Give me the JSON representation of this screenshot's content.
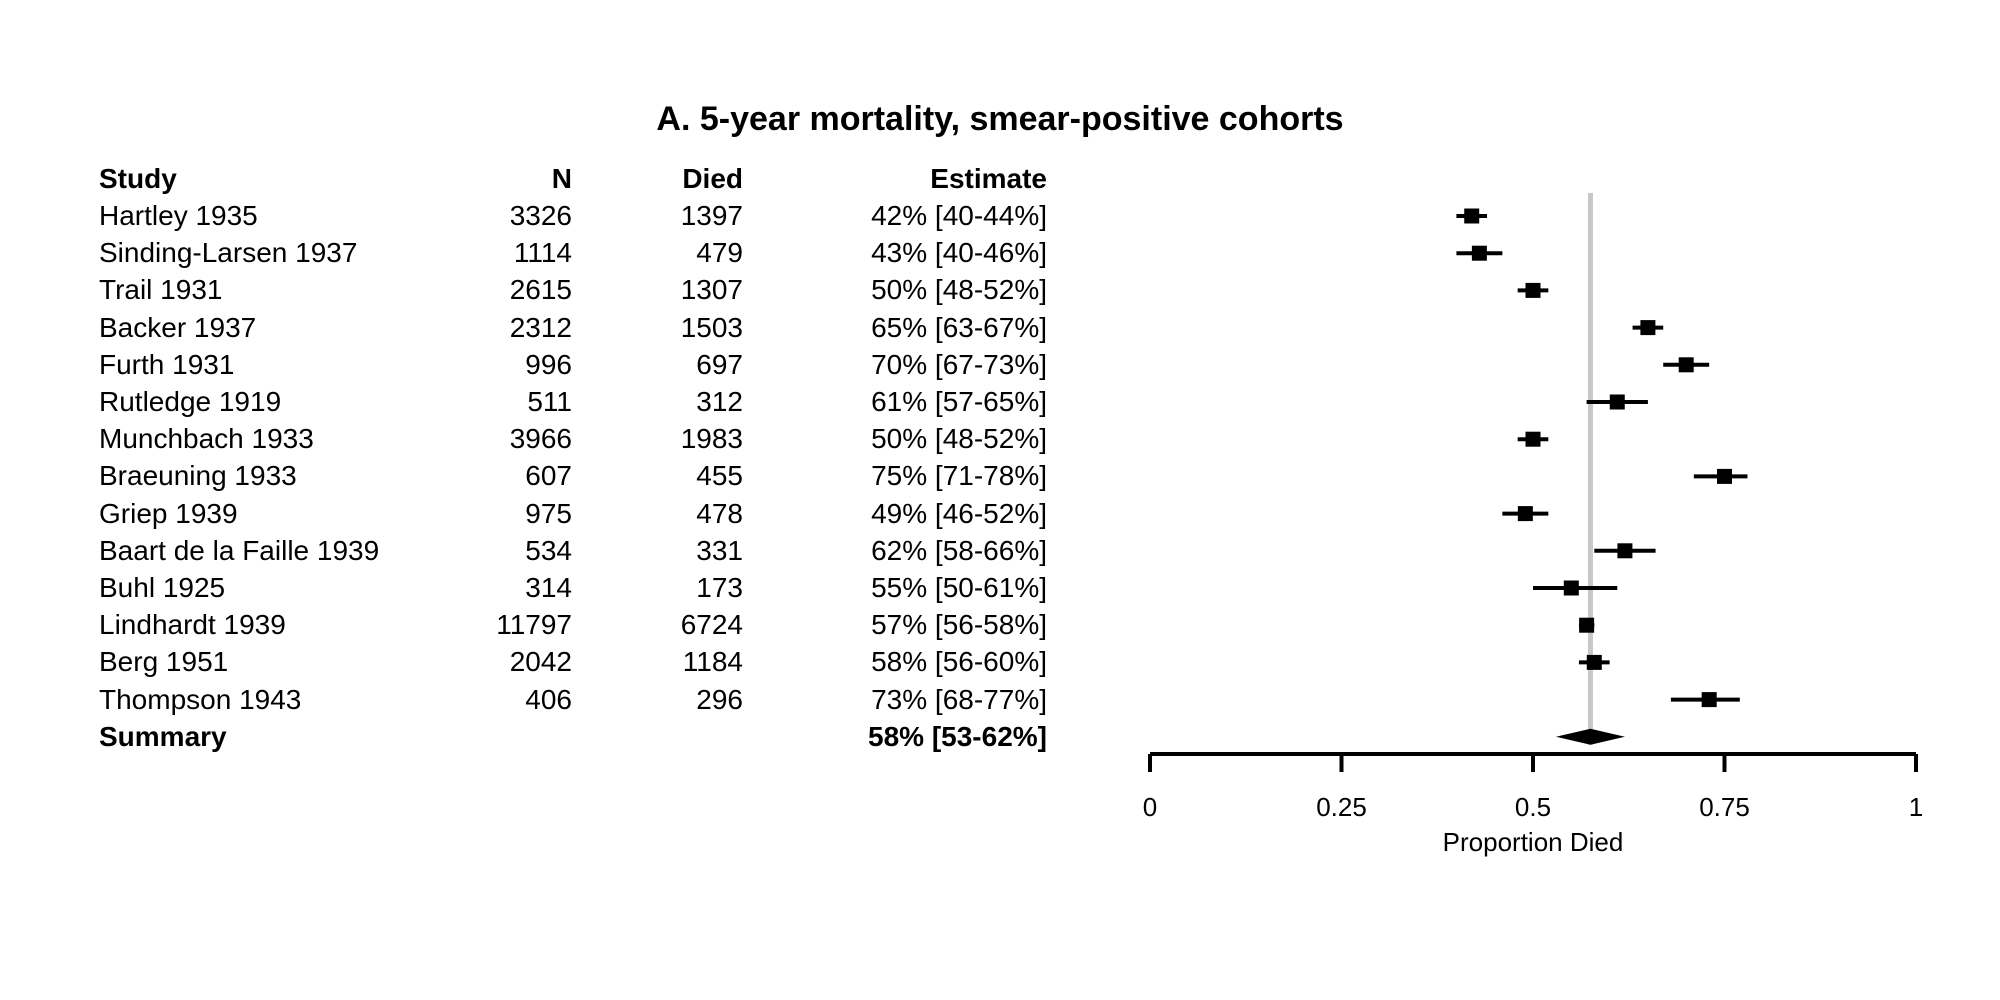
{
  "chart_data": {
    "type": "forest",
    "title": "A. 5-year mortality, smear-positive cohorts",
    "columns": {
      "study": "Study",
      "n": "N",
      "died": "Died",
      "estimate": "Estimate"
    },
    "studies": [
      {
        "study": "Hartley 1935",
        "n": "3326",
        "died": "1397",
        "estimate": "42% [40-44%]",
        "est": 0.42,
        "lo": 0.4,
        "hi": 0.44
      },
      {
        "study": "Sinding-Larsen 1937",
        "n": "1114",
        "died": "479",
        "estimate": "43% [40-46%]",
        "est": 0.43,
        "lo": 0.4,
        "hi": 0.46
      },
      {
        "study": "Trail 1931",
        "n": "2615",
        "died": "1307",
        "estimate": "50% [48-52%]",
        "est": 0.5,
        "lo": 0.48,
        "hi": 0.52
      },
      {
        "study": "Backer 1937",
        "n": "2312",
        "died": "1503",
        "estimate": "65% [63-67%]",
        "est": 0.65,
        "lo": 0.63,
        "hi": 0.67
      },
      {
        "study": "Furth 1931",
        "n": "996",
        "died": "697",
        "estimate": "70% [67-73%]",
        "est": 0.7,
        "lo": 0.67,
        "hi": 0.73
      },
      {
        "study": "Rutledge 1919",
        "n": "511",
        "died": "312",
        "estimate": "61% [57-65%]",
        "est": 0.61,
        "lo": 0.57,
        "hi": 0.65
      },
      {
        "study": "Munchbach 1933",
        "n": "3966",
        "died": "1983",
        "estimate": "50% [48-52%]",
        "est": 0.5,
        "lo": 0.48,
        "hi": 0.52
      },
      {
        "study": "Braeuning 1933",
        "n": "607",
        "died": "455",
        "estimate": "75% [71-78%]",
        "est": 0.75,
        "lo": 0.71,
        "hi": 0.78
      },
      {
        "study": "Griep 1939",
        "n": "975",
        "died": "478",
        "estimate": "49% [46-52%]",
        "est": 0.49,
        "lo": 0.46,
        "hi": 0.52
      },
      {
        "study": "Baart de la Faille 1939",
        "n": "534",
        "died": "331",
        "estimate": "62% [58-66%]",
        "est": 0.62,
        "lo": 0.58,
        "hi": 0.66
      },
      {
        "study": "Buhl 1925",
        "n": "314",
        "died": "173",
        "estimate": "55% [50-61%]",
        "est": 0.55,
        "lo": 0.5,
        "hi": 0.61
      },
      {
        "study": "Lindhardt 1939",
        "n": "11797",
        "died": "6724",
        "estimate": "57% [56-58%]",
        "est": 0.57,
        "lo": 0.56,
        "hi": 0.58
      },
      {
        "study": "Berg 1951",
        "n": "2042",
        "died": "1184",
        "estimate": "58% [56-60%]",
        "est": 0.58,
        "lo": 0.56,
        "hi": 0.6
      },
      {
        "study": "Thompson 1943",
        "n": "406",
        "died": "296",
        "estimate": "73% [68-77%]",
        "est": 0.73,
        "lo": 0.68,
        "hi": 0.77
      }
    ],
    "summary": {
      "study": "Summary",
      "estimate": "58% [53-62%]",
      "est": 0.575,
      "lo": 0.53,
      "hi": 0.62
    },
    "x_ticks": [
      "0",
      "0.25",
      "0.5",
      "0.75",
      "1"
    ],
    "xlabel": "Proportion Died",
    "xlim": [
      0,
      1
    ],
    "reference_line": 0.575,
    "colors": {
      "marks": "#000000",
      "reference_line": "#c8c8c8"
    }
  }
}
